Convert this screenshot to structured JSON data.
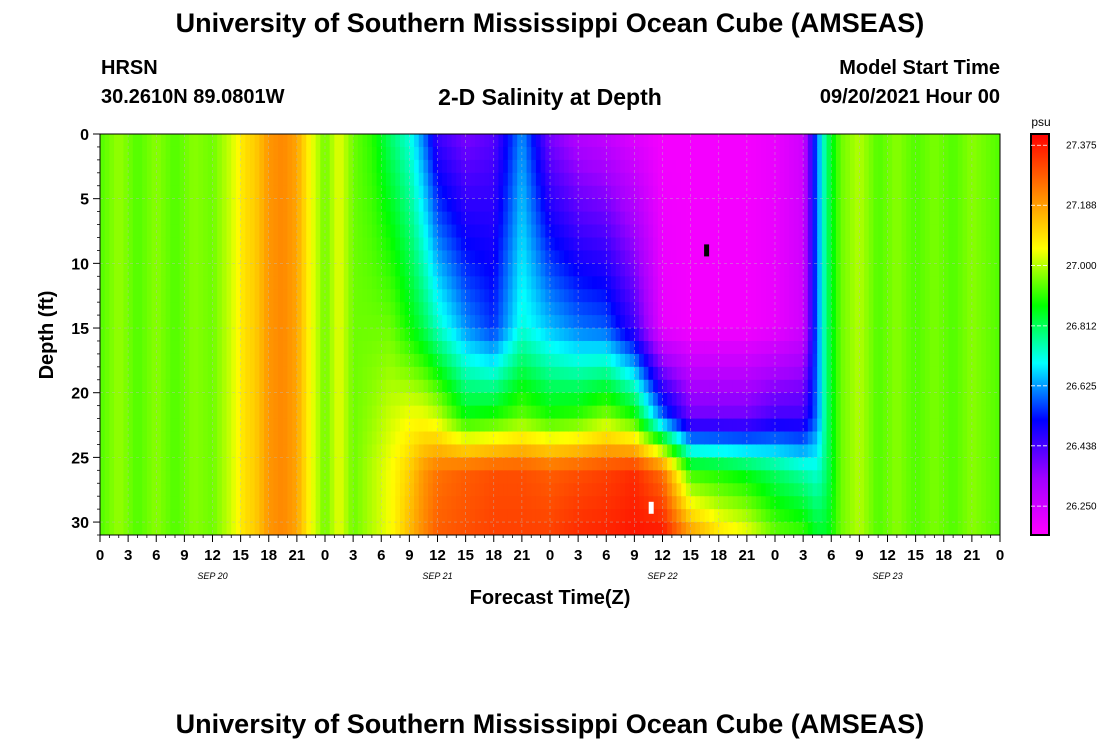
{
  "page": {
    "title_top": "University of Southern Mississippi Ocean Cube (AMSEAS)",
    "title_bottom": "University of Southern Mississippi Ocean Cube (AMSEAS)",
    "station": "HRSN",
    "coordinates": "30.2610N  89.0801W",
    "plot_title": "2-D Salinity at Depth",
    "model_start_label": "Model Start Time",
    "model_start_value": "09/20/2021 Hour 00"
  },
  "chart_data": {
    "type": "heatmap",
    "title": "2-D Salinity at Depth",
    "xlabel": "Forecast Time(Z)",
    "ylabel": "Depth (ft)",
    "x_unit": "hours since 09/20/2021 00Z",
    "x_range": [
      0,
      96
    ],
    "x_tick_hours": [
      0,
      3,
      6,
      9,
      12,
      15,
      18,
      21,
      24,
      27,
      30,
      33,
      36,
      39,
      42,
      45,
      48,
      51,
      54,
      57,
      60,
      63,
      66,
      69,
      72,
      75,
      78,
      81,
      84,
      87,
      90,
      93,
      96
    ],
    "x_tick_labels": [
      "0",
      "3",
      "6",
      "9",
      "12",
      "15",
      "18",
      "21",
      "0",
      "3",
      "6",
      "9",
      "12",
      "15",
      "18",
      "21",
      "0",
      "3",
      "6",
      "9",
      "12",
      "15",
      "18",
      "21",
      "0",
      "3",
      "6",
      "9",
      "12",
      "15",
      "18",
      "21",
      "0"
    ],
    "date_labels": [
      {
        "text": "SEP 20",
        "hour": 12
      },
      {
        "text": "SEP 21",
        "hour": 36
      },
      {
        "text": "SEP 22",
        "hour": 60
      },
      {
        "text": "SEP 23",
        "hour": 84
      }
    ],
    "y_range": [
      0,
      31
    ],
    "y_ticks": [
      0,
      5,
      10,
      15,
      20,
      25,
      30
    ],
    "y_tick_labels": [
      "0",
      "5",
      "10",
      "15",
      "20",
      "25",
      "30"
    ],
    "grid": true,
    "colorbar": {
      "unit": "psu",
      "ticks": [
        "27.375",
        "27.188",
        "27.000",
        "26.812",
        "26.625",
        "26.438",
        "26.250"
      ],
      "tick_values": [
        27.375,
        27.188,
        27.0,
        26.812,
        26.625,
        26.438,
        26.25
      ],
      "min": 26.16,
      "max": 27.41,
      "colors": [
        "#ff00ff",
        "#a000ff",
        "#0000ff",
        "#00ffff",
        "#00ff00",
        "#ffff00",
        "#ff8000",
        "#ff0000"
      ]
    },
    "series": [
      {
        "depths_ft": [
          0,
          15,
          22,
          26,
          31
        ],
        "columns": [
          {
            "hour": 0,
            "values": [
              26.93,
              26.93,
              26.93,
              26.93,
              26.93
            ]
          },
          {
            "hour": 2,
            "values": [
              26.98,
              26.98,
              26.98,
              26.98,
              26.98
            ]
          },
          {
            "hour": 4,
            "values": [
              26.93,
              26.93,
              26.93,
              26.93,
              26.93
            ]
          },
          {
            "hour": 6,
            "values": [
              26.97,
              26.97,
              26.97,
              26.97,
              26.97
            ]
          },
          {
            "hour": 8,
            "values": [
              26.93,
              26.93,
              26.93,
              26.93,
              26.93
            ]
          },
          {
            "hour": 10,
            "values": [
              26.97,
              26.97,
              26.97,
              26.97,
              26.97
            ]
          },
          {
            "hour": 12,
            "values": [
              26.95,
              26.95,
              26.95,
              26.95,
              26.95
            ]
          },
          {
            "hour": 14,
            "values": [
              27.02,
              27.02,
              27.02,
              27.02,
              27.02
            ]
          },
          {
            "hour": 15.5,
            "values": [
              27.1,
              27.1,
              27.1,
              27.1,
              27.1
            ]
          },
          {
            "hour": 16.5,
            "values": [
              27.12,
              27.12,
              27.12,
              27.12,
              27.12
            ]
          },
          {
            "hour": 18,
            "values": [
              27.2,
              27.2,
              27.2,
              27.2,
              27.2
            ]
          },
          {
            "hour": 19.5,
            "values": [
              27.22,
              27.22,
              27.22,
              27.22,
              27.22
            ]
          },
          {
            "hour": 21,
            "values": [
              27.18,
              27.18,
              27.18,
              27.18,
              27.18
            ]
          },
          {
            "hour": 22.5,
            "values": [
              27.05,
              27.05,
              27.05,
              27.05,
              27.05
            ]
          },
          {
            "hour": 24,
            "values": [
              26.95,
              26.95,
              26.95,
              26.95,
              26.95
            ]
          },
          {
            "hour": 25.5,
            "values": [
              27.04,
              27.04,
              27.04,
              27.04,
              27.04
            ]
          },
          {
            "hour": 27,
            "values": [
              26.95,
              26.95,
              26.95,
              26.95,
              26.95
            ]
          },
          {
            "hour": 29,
            "values": [
              26.9,
              26.95,
              26.98,
              27.0,
              27.0
            ]
          },
          {
            "hour": 31,
            "values": [
              26.8,
              26.95,
              27.02,
              27.05,
              27.05
            ]
          },
          {
            "hour": 33,
            "values": [
              26.72,
              26.88,
              27.05,
              27.12,
              27.15
            ]
          },
          {
            "hour": 34.5,
            "values": [
              26.6,
              26.82,
              27.05,
              27.2,
              27.22
            ]
          },
          {
            "hour": 36,
            "values": [
              26.45,
              26.74,
              27.02,
              27.25,
              27.28
            ]
          },
          {
            "hour": 39,
            "values": [
              26.38,
              26.62,
              26.88,
              27.28,
              27.3
            ]
          },
          {
            "hour": 42,
            "values": [
              26.42,
              26.55,
              26.9,
              27.3,
              27.32
            ]
          },
          {
            "hour": 45,
            "values": [
              26.62,
              26.72,
              26.95,
              27.3,
              27.32
            ]
          },
          {
            "hour": 48,
            "values": [
              26.38,
              26.65,
              26.9,
              27.28,
              27.32
            ]
          },
          {
            "hour": 51,
            "values": [
              26.3,
              26.6,
              26.92,
              27.3,
              27.35
            ]
          },
          {
            "hour": 54,
            "values": [
              26.27,
              26.58,
              26.98,
              27.32,
              27.36
            ]
          },
          {
            "hour": 57,
            "values": [
              26.22,
              26.45,
              26.9,
              27.35,
              27.38
            ]
          },
          {
            "hour": 60,
            "values": [
              26.18,
              26.2,
              26.6,
              27.25,
              27.38
            ]
          },
          {
            "hour": 63,
            "values": [
              26.18,
              26.18,
              26.4,
              26.9,
              27.2
            ]
          },
          {
            "hour": 66,
            "values": [
              26.18,
              26.18,
              26.4,
              26.88,
              27.1
            ]
          },
          {
            "hour": 69,
            "values": [
              26.18,
              26.18,
              26.4,
              26.85,
              27.05
            ]
          },
          {
            "hour": 72,
            "values": [
              26.2,
              26.2,
              26.45,
              26.8,
              26.95
            ]
          },
          {
            "hour": 75,
            "values": [
              26.25,
              26.25,
              26.45,
              26.75,
              26.92
            ]
          },
          {
            "hour": 76.5,
            "values": [
              26.6,
              26.6,
              26.6,
              26.72,
              26.85
            ]
          },
          {
            "hour": 77.5,
            "values": [
              26.8,
              26.8,
              26.8,
              26.8,
              26.85
            ]
          },
          {
            "hour": 79,
            "values": [
              26.95,
              26.95,
              26.95,
              26.95,
              26.95
            ]
          },
          {
            "hour": 81,
            "values": [
              27.0,
              27.0,
              27.0,
              27.0,
              27.0
            ]
          },
          {
            "hour": 83,
            "values": [
              26.93,
              26.93,
              26.93,
              26.93,
              26.93
            ]
          },
          {
            "hour": 85,
            "values": [
              26.97,
              26.97,
              26.97,
              26.97,
              26.97
            ]
          },
          {
            "hour": 87,
            "values": [
              26.93,
              26.93,
              26.93,
              26.93,
              26.93
            ]
          },
          {
            "hour": 89,
            "values": [
              26.96,
              26.96,
              26.96,
              26.96,
              26.96
            ]
          },
          {
            "hour": 91,
            "values": [
              26.93,
              26.93,
              26.93,
              26.93,
              26.93
            ]
          },
          {
            "hour": 93,
            "values": [
              26.97,
              26.97,
              26.97,
              26.97,
              26.97
            ]
          },
          {
            "hour": 96,
            "values": [
              26.93,
              26.93,
              26.93,
              26.93,
              26.93
            ]
          }
        ]
      }
    ],
    "annotations": [
      {
        "type": "max-marker",
        "color": "#ffffff",
        "hour": 58.8,
        "depth_ft": 28.9
      },
      {
        "type": "min-marker",
        "color": "#000000",
        "hour": 64.7,
        "depth_ft": 9.0
      }
    ]
  }
}
